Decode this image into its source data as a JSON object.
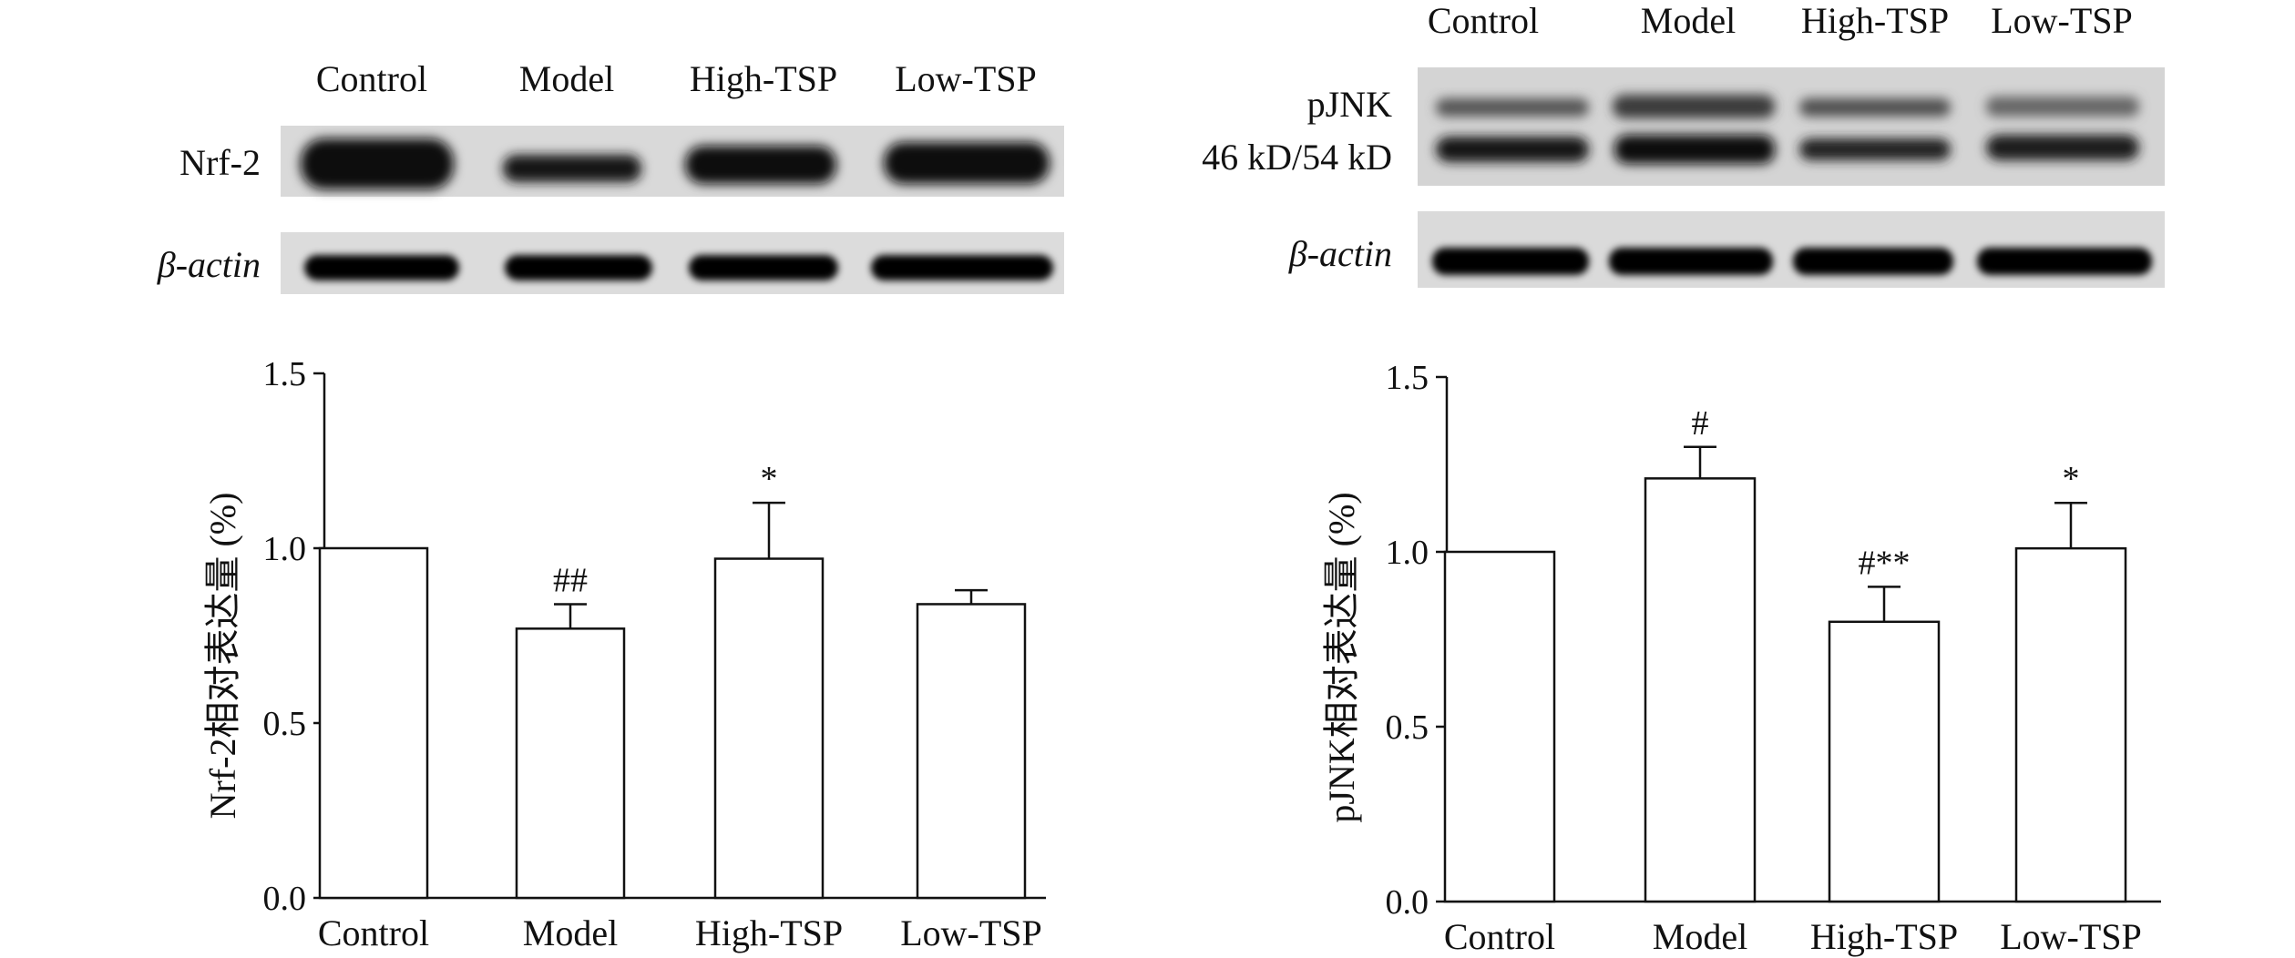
{
  "chart_data": [
    {
      "type": "bar",
      "panel": "left",
      "categories": [
        "Control",
        "Model",
        "High-TSP",
        "Low-TSP"
      ],
      "values": [
        1.0,
        0.77,
        0.97,
        0.84
      ],
      "errors": [
        0.0,
        0.07,
        0.16,
        0.04
      ],
      "annotations": [
        "",
        "##",
        "*",
        ""
      ],
      "ylabel": "Nrf-2相对表达量 (%)",
      "ylim": [
        0,
        1.5
      ],
      "yticks": [
        "0.0",
        "0.5",
        "1.0",
        "1.5"
      ],
      "grid": false,
      "blot": {
        "lanes": [
          "Control",
          "Model",
          "High-TSP",
          "Low-TSP"
        ],
        "band_labels": [
          "Nrf-2",
          "β-actin"
        ]
      }
    },
    {
      "type": "bar",
      "panel": "right",
      "categories": [
        "Control",
        "Model",
        "High-TSP",
        "Low-TSP"
      ],
      "values": [
        1.0,
        1.21,
        0.8,
        1.01
      ],
      "errors": [
        0.0,
        0.09,
        0.1,
        0.13
      ],
      "annotations": [
        "",
        "#",
        "#**",
        "*"
      ],
      "ylabel": "pJNK相对表达量 (%)",
      "ylim": [
        0,
        1.5
      ],
      "yticks": [
        "0.0",
        "0.5",
        "1.0",
        "1.5"
      ],
      "grid": false,
      "blot": {
        "lanes": [
          "Control",
          "Model",
          "High-TSP",
          "Low-TSP"
        ],
        "band_labels": [
          "pJNK",
          "46 kD/54 kD",
          "β-actin"
        ]
      }
    }
  ]
}
